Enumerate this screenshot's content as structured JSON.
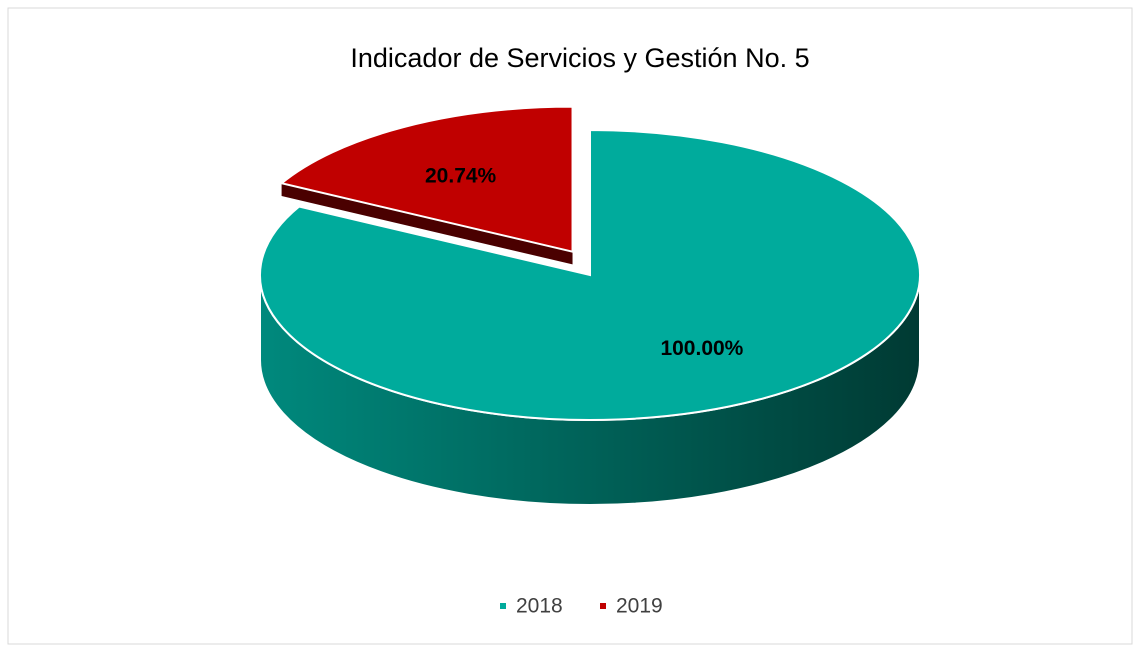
{
  "chart_data": {
    "type": "pie",
    "title": "Indicador de Servicios y Gestión No. 5",
    "categories": [
      "2018",
      "2019"
    ],
    "values": [
      100,
      20.74
    ],
    "value_labels": [
      "100.00%",
      "20.74%"
    ],
    "colors": [
      "#00ab9c",
      "#c00000"
    ],
    "side_colors": [
      [
        "#00897d",
        "#003a33"
      ],
      [
        "#7a0000",
        "#4a0000"
      ]
    ],
    "legend": "bottom"
  }
}
